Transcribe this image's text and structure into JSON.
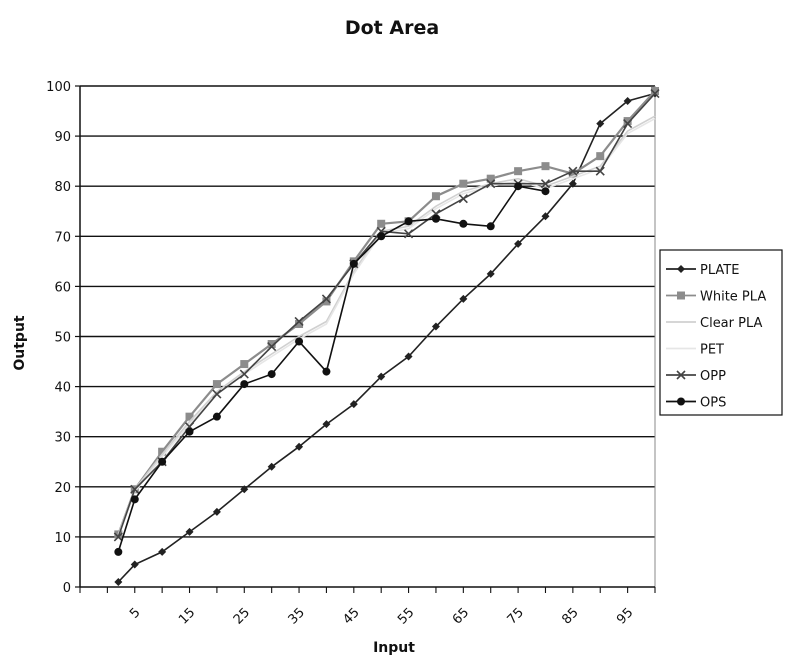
{
  "chart_data": {
    "type": "line",
    "title": "Dot Area",
    "xlabel": "Input",
    "ylabel": "Output",
    "ylim": [
      0,
      100
    ],
    "yticks": [
      0,
      10,
      20,
      30,
      40,
      50,
      60,
      70,
      80,
      90,
      100
    ],
    "xlim": [
      -5,
      100
    ],
    "xticks": [
      5,
      15,
      25,
      35,
      45,
      55,
      65,
      75,
      85,
      95
    ],
    "grid": "horizontal",
    "legend": "right",
    "series": [
      {
        "name": "PLATE",
        "color": "#222222",
        "marker": "diamond",
        "x": [
          2,
          5,
          10,
          15,
          20,
          25,
          30,
          35,
          40,
          45,
          50,
          55,
          60,
          65,
          70,
          75,
          80,
          85,
          90,
          95,
          100
        ],
        "y": [
          1,
          4.5,
          7,
          11,
          15,
          19.5,
          24,
          28,
          32.5,
          36.5,
          42,
          46,
          52,
          57.5,
          62.5,
          68.5,
          74,
          80.5,
          92.5,
          97,
          98.5
        ]
      },
      {
        "name": "White PLA",
        "color": "#8c8c8c",
        "marker": "square",
        "x": [
          2,
          5,
          10,
          15,
          20,
          25,
          30,
          35,
          40,
          45,
          50,
          55,
          60,
          65,
          70,
          75,
          80,
          85,
          90,
          95,
          100
        ],
        "y": [
          10.5,
          19.5,
          27,
          34,
          40.5,
          44.5,
          48.5,
          52.5,
          57,
          65,
          72.5,
          73,
          78,
          80.5,
          81.5,
          83,
          84,
          82.5,
          86,
          93,
          99
        ]
      },
      {
        "name": "Clear PLA",
        "color": "#d0d0d0",
        "marker": "none",
        "x": [
          2,
          5,
          10,
          15,
          20,
          25,
          30,
          35,
          40,
          45,
          50,
          55,
          60,
          65,
          70,
          75,
          80,
          85,
          90,
          95,
          100
        ],
        "y": [
          10.5,
          19.5,
          26.5,
          33,
          39,
          43,
          46.5,
          50,
          53,
          63,
          71,
          72,
          76,
          79,
          80.5,
          81.5,
          80,
          82,
          84,
          91,
          94
        ]
      },
      {
        "name": "PET",
        "color": "#e6e6e6",
        "marker": "none",
        "x": [
          2,
          5,
          10,
          15,
          20,
          25,
          30,
          35,
          40,
          45,
          50,
          55,
          60,
          65,
          70,
          75,
          80,
          85,
          90,
          95,
          100
        ],
        "y": [
          10,
          19,
          26,
          32.5,
          38.5,
          42.5,
          46,
          49.5,
          52.5,
          62.5,
          70.5,
          71.5,
          75.5,
          78.5,
          80,
          81,
          79.5,
          81.5,
          83.5,
          90.5,
          93.5
        ]
      },
      {
        "name": "OPP",
        "color": "#444444",
        "marker": "x",
        "x": [
          2,
          5,
          10,
          15,
          20,
          25,
          30,
          35,
          40,
          45,
          50,
          55,
          60,
          65,
          70,
          75,
          80,
          85,
          90,
          95,
          100
        ],
        "y": [
          10,
          19.5,
          25,
          32,
          38.5,
          42.5,
          48,
          53,
          57.5,
          64.5,
          71,
          70.5,
          74.5,
          77.5,
          80.5,
          80.5,
          80.5,
          83,
          83,
          92.5,
          98.5
        ]
      },
      {
        "name": "OPS",
        "color": "#111111",
        "marker": "circle",
        "x": [
          2,
          5,
          10,
          15,
          20,
          25,
          30,
          35,
          40,
          45,
          50,
          55,
          60,
          65,
          70,
          75,
          80
        ],
        "y": [
          7,
          17.5,
          25,
          31,
          34,
          40.5,
          42.5,
          49,
          43,
          64.5,
          70,
          73,
          73.5,
          72.5,
          72,
          80,
          79
        ]
      }
    ]
  }
}
